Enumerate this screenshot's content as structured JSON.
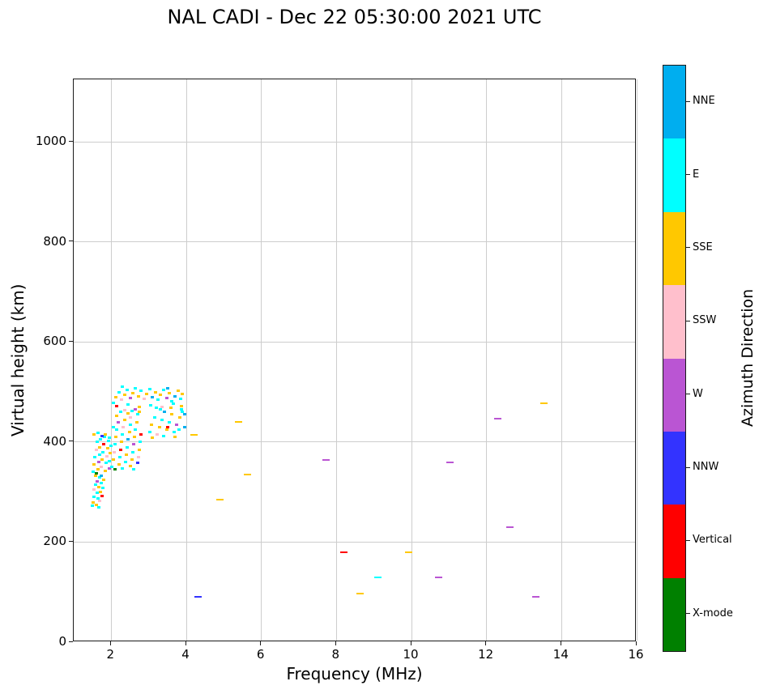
{
  "title": "NAL CADI - Dec 22 05:30:00 2021 UTC",
  "axes": {
    "xlabel": "Frequency (MHz)",
    "ylabel": "Virtual height (km)",
    "x_ticks": [
      2,
      4,
      6,
      8,
      10,
      12,
      14,
      16
    ],
    "y_ticks": [
      0,
      200,
      400,
      600,
      800,
      1000
    ],
    "grid": true
  },
  "colorbar": {
    "label": "Azimuth Direction",
    "segments": [
      {
        "label": "NNE",
        "color": "#00AEEF"
      },
      {
        "label": "E",
        "color": "#00FFFF"
      },
      {
        "label": "SSE",
        "color": "#FFC800"
      },
      {
        "label": "SSW",
        "color": "#FFBFCC"
      },
      {
        "label": "W",
        "color": "#BA55D3"
      },
      {
        "label": "NNW",
        "color": "#3333FF"
      },
      {
        "label": "Vertical",
        "color": "#FF0000"
      },
      {
        "label": "X-mode",
        "color": "#008000"
      }
    ]
  },
  "chart_data": {
    "type": "scatter",
    "title": "NAL CADI - Dec 22 05:30:00 2021 UTC",
    "xlabel": "Frequency (MHz)",
    "ylabel": "Virtual height (km)",
    "xlim": [
      1,
      16
    ],
    "ylim": [
      0,
      1125
    ],
    "grid": true,
    "legend": [
      "NNE",
      "E",
      "SSE",
      "SSW",
      "W",
      "NNW",
      "Vertical",
      "X-mode"
    ],
    "legend_position": "right-colorbar",
    "series_key": "azimuth_direction",
    "direction_colors": {
      "NNE": "#00AEEF",
      "E": "#00FFFF",
      "SSE": "#FFC800",
      "SSW": "#FFBFCC",
      "W": "#BA55D3",
      "NNW": "#3333FF",
      "Vertical": "#FF0000",
      "X-mode": "#008000"
    },
    "points": [
      [
        1.5,
        272,
        "E"
      ],
      [
        1.52,
        280,
        "SSE"
      ],
      [
        1.55,
        290,
        "E"
      ],
      [
        1.55,
        305,
        "SSW"
      ],
      [
        1.58,
        315,
        "E"
      ],
      [
        1.6,
        275,
        "SSE"
      ],
      [
        1.62,
        298,
        "E"
      ],
      [
        1.63,
        322,
        "W"
      ],
      [
        1.65,
        288,
        "E"
      ],
      [
        1.66,
        310,
        "SSE"
      ],
      [
        1.68,
        330,
        "E"
      ],
      [
        1.7,
        282,
        "SSW"
      ],
      [
        1.72,
        300,
        "SSE"
      ],
      [
        1.74,
        318,
        "E"
      ],
      [
        1.76,
        292,
        "Vertical"
      ],
      [
        1.78,
        308,
        "E"
      ],
      [
        1.8,
        325,
        "SSE"
      ],
      [
        1.58,
        332,
        "SSE"
      ],
      [
        1.66,
        270,
        "E"
      ],
      [
        1.74,
        332,
        "NNE"
      ],
      [
        1.52,
        340,
        "E"
      ],
      [
        1.55,
        355,
        "SSE"
      ],
      [
        1.57,
        370,
        "E"
      ],
      [
        1.6,
        385,
        "SSW"
      ],
      [
        1.62,
        400,
        "E"
      ],
      [
        1.64,
        345,
        "SSE"
      ],
      [
        1.66,
        360,
        "W"
      ],
      [
        1.68,
        375,
        "E"
      ],
      [
        1.7,
        390,
        "SSE"
      ],
      [
        1.72,
        405,
        "E"
      ],
      [
        1.74,
        350,
        "SSW"
      ],
      [
        1.76,
        365,
        "SSE"
      ],
      [
        1.78,
        380,
        "E"
      ],
      [
        1.8,
        395,
        "Vertical"
      ],
      [
        1.82,
        410,
        "E"
      ],
      [
        1.84,
        342,
        "SSE"
      ],
      [
        1.86,
        358,
        "E"
      ],
      [
        1.88,
        372,
        "SSW"
      ],
      [
        1.9,
        388,
        "SSE"
      ],
      [
        1.92,
        402,
        "E"
      ],
      [
        1.94,
        348,
        "W"
      ],
      [
        1.96,
        362,
        "E"
      ],
      [
        1.98,
        378,
        "SSE"
      ],
      [
        2.0,
        392,
        "E"
      ],
      [
        1.55,
        415,
        "SSE"
      ],
      [
        1.65,
        418,
        "E"
      ],
      [
        1.75,
        412,
        "NNW"
      ],
      [
        1.85,
        416,
        "SSE"
      ],
      [
        1.95,
        408,
        "E"
      ],
      [
        1.6,
        338,
        "X-mode"
      ],
      [
        2.02,
        350,
        "E"
      ],
      [
        2.05,
        365,
        "SSE"
      ],
      [
        2.08,
        380,
        "SSW"
      ],
      [
        2.1,
        395,
        "E"
      ],
      [
        2.12,
        410,
        "SSE"
      ],
      [
        2.15,
        425,
        "E"
      ],
      [
        2.18,
        440,
        "W"
      ],
      [
        2.2,
        355,
        "SSE"
      ],
      [
        2.22,
        370,
        "E"
      ],
      [
        2.25,
        385,
        "Vertical"
      ],
      [
        2.28,
        400,
        "SSE"
      ],
      [
        2.3,
        415,
        "E"
      ],
      [
        2.32,
        430,
        "SSW"
      ],
      [
        2.35,
        445,
        "SSE"
      ],
      [
        2.38,
        360,
        "E"
      ],
      [
        2.4,
        375,
        "SSE"
      ],
      [
        2.42,
        390,
        "E"
      ],
      [
        2.45,
        405,
        "NNE"
      ],
      [
        2.48,
        420,
        "SSE"
      ],
      [
        2.5,
        435,
        "E"
      ],
      [
        2.52,
        450,
        "SSW"
      ],
      [
        2.55,
        365,
        "SSE"
      ],
      [
        2.58,
        380,
        "E"
      ],
      [
        2.6,
        395,
        "W"
      ],
      [
        2.62,
        410,
        "SSE"
      ],
      [
        2.65,
        425,
        "E"
      ],
      [
        2.68,
        440,
        "SSE"
      ],
      [
        2.7,
        455,
        "E"
      ],
      [
        2.72,
        370,
        "SSW"
      ],
      [
        2.75,
        385,
        "SSE"
      ],
      [
        2.78,
        400,
        "E"
      ],
      [
        2.8,
        415,
        "Vertical"
      ],
      [
        2.05,
        430,
        "E"
      ],
      [
        2.15,
        452,
        "SSE"
      ],
      [
        2.25,
        460,
        "E"
      ],
      [
        2.35,
        463,
        "SSW"
      ],
      [
        2.45,
        458,
        "SSE"
      ],
      [
        2.55,
        462,
        "E"
      ],
      [
        2.65,
        466,
        "W"
      ],
      [
        2.75,
        460,
        "SSE"
      ],
      [
        2.1,
        345,
        "X-mode"
      ],
      [
        2.3,
        348,
        "E"
      ],
      [
        2.5,
        352,
        "SSE"
      ],
      [
        2.7,
        358,
        "NNW"
      ],
      [
        2.6,
        345,
        "E"
      ],
      [
        2.05,
        478,
        "E"
      ],
      [
        2.12,
        490,
        "SSE"
      ],
      [
        2.2,
        500,
        "E"
      ],
      [
        2.28,
        485,
        "SSW"
      ],
      [
        2.35,
        495,
        "SSE"
      ],
      [
        2.42,
        505,
        "E"
      ],
      [
        2.5,
        488,
        "W"
      ],
      [
        2.58,
        498,
        "SSE"
      ],
      [
        2.65,
        508,
        "E"
      ],
      [
        2.72,
        492,
        "SSE"
      ],
      [
        2.8,
        502,
        "E"
      ],
      [
        2.88,
        486,
        "SSW"
      ],
      [
        2.95,
        496,
        "SSE"
      ],
      [
        3.02,
        506,
        "E"
      ],
      [
        3.1,
        490,
        "NNE"
      ],
      [
        3.18,
        500,
        "SSE"
      ],
      [
        3.25,
        484,
        "E"
      ],
      [
        3.32,
        494,
        "SSE"
      ],
      [
        3.4,
        504,
        "E"
      ],
      [
        3.48,
        488,
        "W"
      ],
      [
        3.55,
        498,
        "SSE"
      ],
      [
        3.62,
        482,
        "E"
      ],
      [
        3.7,
        492,
        "NNE"
      ],
      [
        3.78,
        502,
        "SSE"
      ],
      [
        3.85,
        486,
        "E"
      ],
      [
        3.9,
        496,
        "SSE"
      ],
      [
        2.15,
        472,
        "Vertical"
      ],
      [
        2.45,
        475,
        "E"
      ],
      [
        2.75,
        470,
        "SSE"
      ],
      [
        3.05,
        474,
        "E"
      ],
      [
        3.35,
        470,
        "SSW"
      ],
      [
        3.65,
        476,
        "E"
      ],
      [
        3.88,
        472,
        "SSE"
      ],
      [
        2.3,
        510,
        "E"
      ],
      [
        3.5,
        508,
        "NNE"
      ],
      [
        3.02,
        420,
        "E"
      ],
      [
        3.08,
        435,
        "SSE"
      ],
      [
        3.15,
        450,
        "E"
      ],
      [
        3.22,
        415,
        "SSW"
      ],
      [
        3.28,
        430,
        "SSE"
      ],
      [
        3.35,
        445,
        "E"
      ],
      [
        3.42,
        460,
        "NNE"
      ],
      [
        3.48,
        425,
        "SSE"
      ],
      [
        3.55,
        440,
        "E"
      ],
      [
        3.62,
        455,
        "SSE"
      ],
      [
        3.68,
        420,
        "E"
      ],
      [
        3.75,
        435,
        "W"
      ],
      [
        3.82,
        450,
        "SSE"
      ],
      [
        3.88,
        465,
        "E"
      ],
      [
        3.95,
        430,
        "NNE"
      ],
      [
        3.3,
        465,
        "E"
      ],
      [
        3.6,
        468,
        "SSE"
      ],
      [
        3.9,
        460,
        "E"
      ],
      [
        3.1,
        408,
        "SSE"
      ],
      [
        3.4,
        412,
        "E"
      ],
      [
        3.7,
        410,
        "SSE"
      ],
      [
        3.95,
        455,
        "NNE"
      ],
      [
        3.2,
        468,
        "E"
      ],
      [
        3.5,
        430,
        "Vertical"
      ],
      [
        3.8,
        425,
        "E"
      ],
      [
        4.2,
        415,
        "SSE"
      ],
      [
        4.32,
        90,
        "NNW"
      ],
      [
        4.9,
        285,
        "SSE"
      ],
      [
        5.4,
        440,
        "SSE"
      ],
      [
        5.62,
        335,
        "SSE"
      ],
      [
        7.72,
        365,
        "W"
      ],
      [
        8.2,
        180,
        "Vertical"
      ],
      [
        8.62,
        97,
        "SSE"
      ],
      [
        9.1,
        130,
        "E"
      ],
      [
        9.92,
        180,
        "SSE"
      ],
      [
        10.72,
        130,
        "W"
      ],
      [
        11.02,
        360,
        "W"
      ],
      [
        12.3,
        447,
        "W"
      ],
      [
        12.62,
        230,
        "W"
      ],
      [
        13.32,
        90,
        "W"
      ],
      [
        13.52,
        477,
        "SSE"
      ]
    ]
  }
}
